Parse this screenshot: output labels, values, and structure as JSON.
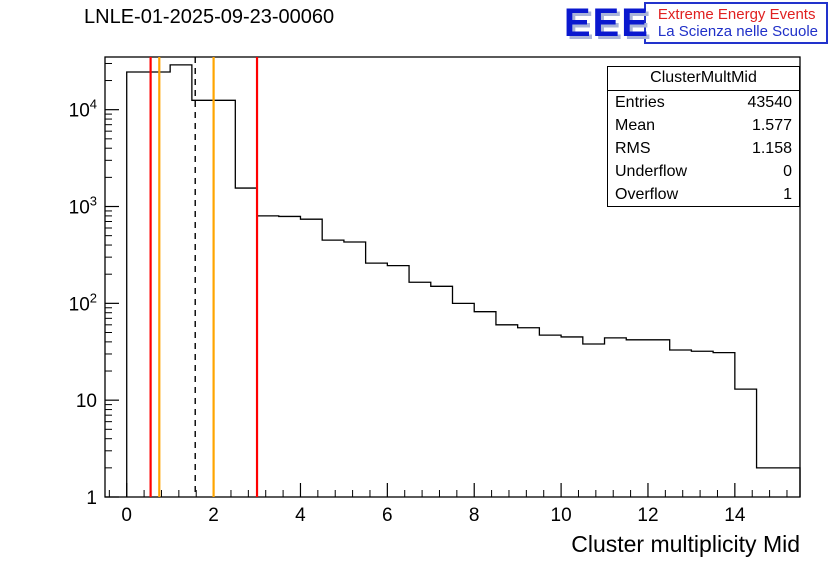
{
  "header": {
    "title": "LNLE-01-2025-09-23-00060",
    "logo": {
      "acronym": "EEE",
      "line1": "Extreme Energy Events",
      "line2": "La Scienza nelle Scuole"
    }
  },
  "stats_box": {
    "title": "ClusterMultMid",
    "rows": [
      {
        "label": "Entries",
        "value": "43540"
      },
      {
        "label": "Mean",
        "value": "1.577"
      },
      {
        "label": "RMS",
        "value": "1.158"
      },
      {
        "label": "Underflow",
        "value": "0"
      },
      {
        "label": "Overflow",
        "value": "1"
      }
    ]
  },
  "chart_data": {
    "type": "bar",
    "subtype": "step-histogram",
    "title": "LNLE-01-2025-09-23-00060",
    "xlabel": "Cluster multiplicity Mid",
    "ylabel": "",
    "yscale": "log",
    "xlim": [
      -0.5,
      15.5
    ],
    "ylim": [
      1,
      35000
    ],
    "grid": false,
    "legend": false,
    "bin_edges": [
      0,
      0.5,
      1,
      1.5,
      2,
      2.5,
      3,
      3.5,
      4,
      4.5,
      5,
      5.5,
      6,
      6.5,
      7,
      7.5,
      8,
      8.5,
      9,
      9.5,
      10,
      10.5,
      11,
      11.5,
      12,
      12.5,
      13,
      13.5,
      14,
      14.5,
      15,
      15.5
    ],
    "counts": [
      24500,
      24500,
      29000,
      12500,
      12500,
      1550,
      800,
      790,
      740,
      450,
      430,
      260,
      245,
      165,
      150,
      100,
      82,
      60,
      56,
      47,
      45,
      38,
      44,
      42,
      42,
      33,
      32,
      31,
      13,
      2,
      2
    ],
    "x_tick_values": [
      0,
      2,
      4,
      6,
      8,
      10,
      12,
      14
    ],
    "x_tick_labels": [
      "0",
      "2",
      "4",
      "6",
      "8",
      "10",
      "12",
      "14"
    ],
    "y_ticks": [
      {
        "value": 1,
        "base": "1",
        "exp": ""
      },
      {
        "value": 10,
        "base": "10",
        "exp": ""
      },
      {
        "value": 100,
        "base": "10",
        "exp": "2"
      },
      {
        "value": 1000,
        "base": "10",
        "exp": "3"
      },
      {
        "value": 10000,
        "base": "10",
        "exp": "4"
      }
    ],
    "marker_lines": {
      "red": [
        0.55,
        3.0
      ],
      "orange": [
        0.75,
        2.0
      ],
      "dashed_black": [
        1.577
      ]
    },
    "colors": {
      "histogram": "#000000",
      "red_line": "#ff0000",
      "orange_line": "#ffa500",
      "dashed_line": "#000000",
      "frame": "#000000"
    }
  }
}
